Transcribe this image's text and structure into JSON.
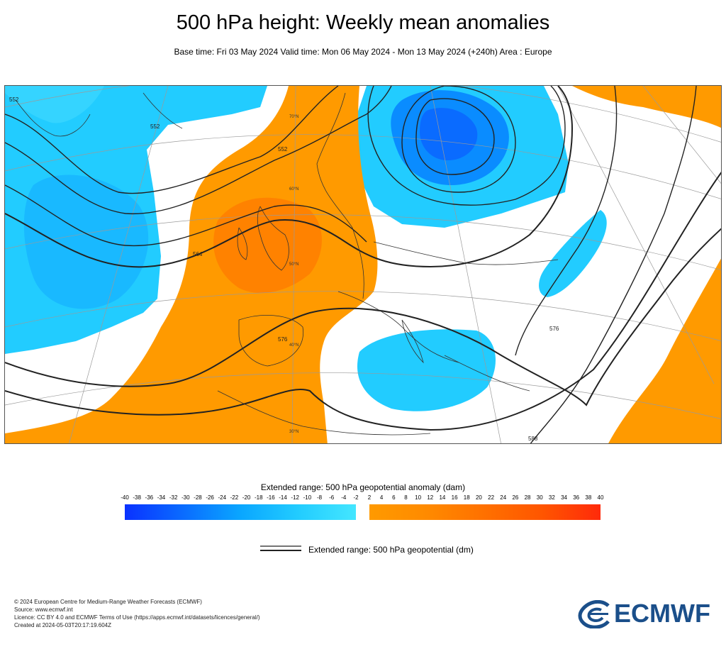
{
  "title": "500 hPa height: Weekly mean anomalies",
  "subtitle": "Base time: Fri 03 May 2024 Valid time: Mon 06 May 2024 - Mon 13 May 2024 (+240h) Area : Europe",
  "map": {
    "contour_labels": [
      "552",
      "552",
      "564",
      "576",
      "576",
      "588",
      "552"
    ],
    "latitude_labels": [
      "70°N",
      "60°N",
      "50°N",
      "40°N",
      "30°N"
    ],
    "colors": {
      "negative_anomaly": "#22ccff",
      "deep_negative": "#0a8cff",
      "positive_anomaly": "#ff9a00",
      "strong_positive": "#ff7a00",
      "contour": "#222222",
      "coast": "#333333",
      "grid": "#999999"
    }
  },
  "legend": {
    "shading_title": "Extended range: 500 hPa geopotential anomaly (dam)",
    "ticks": [
      "-40",
      "-38",
      "-36",
      "-34",
      "-32",
      "-30",
      "-28",
      "-26",
      "-24",
      "-22",
      "-20",
      "-18",
      "-16",
      "-14",
      "-12",
      "-10",
      "-8",
      "-6",
      "-4",
      "-2",
      "2",
      "4",
      "6",
      "8",
      "10",
      "12",
      "14",
      "16",
      "18",
      "20",
      "22",
      "24",
      "26",
      "28",
      "30",
      "32",
      "34",
      "36",
      "38",
      "40"
    ],
    "line_label": "Extended range: 500 hPa geopotential (dm)"
  },
  "footer": {
    "line1": "© 2024 European Centre for Medium-Range Weather Forecasts (ECMWF)",
    "line2": "Source: www.ecmwf.int",
    "line3": "Licence: CC BY 4.0 and ECMWF Terms of Use (https://apps.ecmwf.int/datasets/licences/general/)",
    "line4": "Created at 2024-05-03T20:17:19.604Z"
  },
  "logo": {
    "text": "ECMWF",
    "color": "#1b4f8a"
  }
}
